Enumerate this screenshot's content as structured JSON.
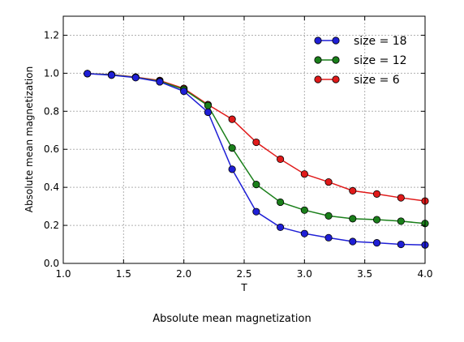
{
  "caption": "Absolute mean magnetization",
  "chart_data": {
    "type": "line",
    "title": "",
    "xlabel": "T",
    "ylabel": "Absolute mean magnetization",
    "xlim": [
      1.0,
      4.0
    ],
    "ylim": [
      0.0,
      1.3
    ],
    "x_ticks": [
      "1.0",
      "1.5",
      "2.0",
      "2.5",
      "3.0",
      "3.5",
      "4.0"
    ],
    "x_tick_values": [
      1.0,
      1.5,
      2.0,
      2.5,
      3.0,
      3.5,
      4.0
    ],
    "y_ticks": [
      "0.0",
      "0.2",
      "0.4",
      "0.6",
      "0.8",
      "1.0",
      "1.2"
    ],
    "y_tick_values": [
      0.0,
      0.2,
      0.4,
      0.6,
      0.8,
      1.0,
      1.2
    ],
    "grid": true,
    "legend_position": "top-right",
    "x": [
      1.2,
      1.4,
      1.6,
      1.8,
      2.0,
      2.2,
      2.4,
      2.6,
      2.8,
      3.0,
      3.2,
      3.4,
      3.6,
      3.8,
      4.0
    ],
    "series": [
      {
        "name": "size = 18",
        "color": "#1f1fd6",
        "values": [
          0.998,
          0.99,
          0.977,
          0.955,
          0.905,
          0.795,
          0.495,
          0.272,
          0.19,
          0.157,
          0.135,
          0.115,
          0.108,
          0.1,
          0.097
        ]
      },
      {
        "name": "size = 12",
        "color": "#1a7f1a",
        "values": [
          0.998,
          0.992,
          0.978,
          0.958,
          0.915,
          0.83,
          0.607,
          0.415,
          0.322,
          0.28,
          0.25,
          0.235,
          0.23,
          0.222,
          0.21
        ]
      },
      {
        "name": "size = 6",
        "color": "#e01a1a",
        "values": [
          0.998,
          0.993,
          0.98,
          0.962,
          0.92,
          0.835,
          0.758,
          0.637,
          0.548,
          0.47,
          0.428,
          0.382,
          0.365,
          0.345,
          0.328
        ]
      }
    ]
  }
}
